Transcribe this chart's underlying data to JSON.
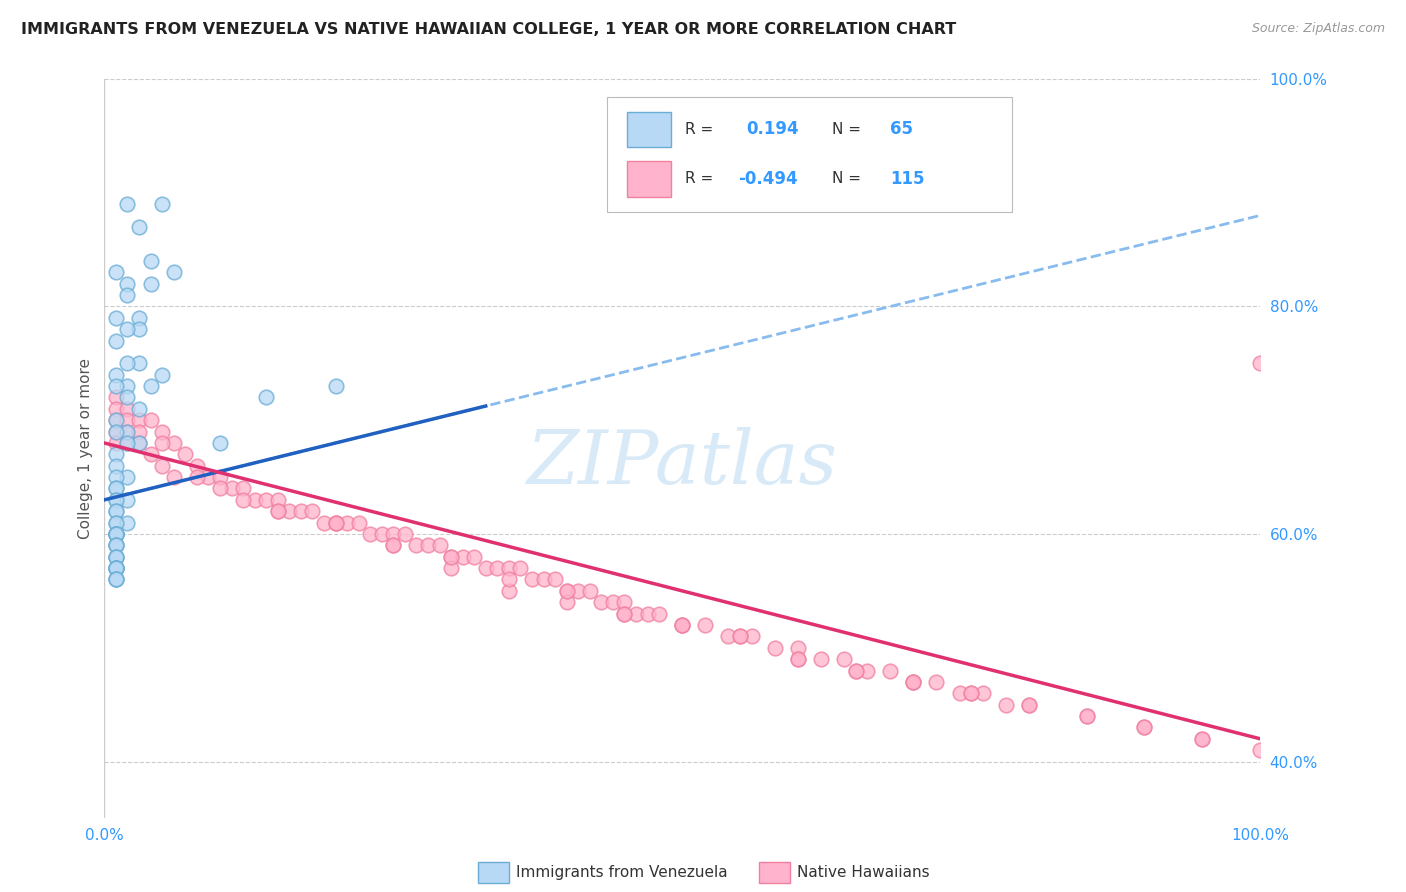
{
  "title": "IMMIGRANTS FROM VENEZUELA VS NATIVE HAWAIIAN COLLEGE, 1 YEAR OR MORE CORRELATION CHART",
  "source": "Source: ZipAtlas.com",
  "ylabel": "College, 1 year or more",
  "legend_label1": "Immigrants from Venezuela",
  "legend_label2": "Native Hawaiians",
  "r1": 0.194,
  "n1": 65,
  "r2": -0.494,
  "n2": 115,
  "blue_scatter_color_face": "#b8d9f5",
  "blue_scatter_color_edge": "#6aadd5",
  "pink_scatter_color_face": "#ffb3cc",
  "pink_scatter_color_edge": "#f080a0",
  "blue_line_color": "#2060c0",
  "blue_dash_color": "#88bbee",
  "pink_line_color": "#e03070",
  "watermark_color": "#d8eaf8",
  "right_tick_color": "#3399ff",
  "title_color": "#222222",
  "source_color": "#999999",
  "ylabel_color": "#555555",
  "grid_color": "#cccccc",
  "background_color": "#ffffff",
  "blue_x": [
    2,
    3,
    4,
    5,
    6,
    2,
    3,
    4,
    1,
    2,
    3,
    1,
    2,
    3,
    4,
    5,
    1,
    2,
    1,
    2,
    3,
    1,
    2,
    1,
    2,
    3,
    1,
    2,
    1,
    1,
    2,
    1,
    1,
    1,
    1,
    2,
    1,
    1,
    1,
    1,
    2,
    1,
    1,
    1,
    1,
    1,
    1,
    1,
    1,
    1,
    1,
    1,
    1,
    10,
    1,
    1,
    1,
    1,
    20,
    1,
    1,
    1,
    1,
    1,
    14
  ],
  "blue_y": [
    89,
    87,
    84,
    89,
    83,
    82,
    79,
    82,
    83,
    81,
    78,
    79,
    78,
    75,
    73,
    74,
    77,
    75,
    74,
    73,
    71,
    73,
    72,
    70,
    69,
    68,
    69,
    68,
    67,
    66,
    65,
    65,
    64,
    64,
    63,
    63,
    63,
    62,
    62,
    61,
    61,
    61,
    60,
    60,
    60,
    60,
    60,
    60,
    59,
    59,
    59,
    58,
    58,
    68,
    58,
    57,
    57,
    57,
    73,
    57,
    57,
    56,
    56,
    56,
    72
  ],
  "pink_x": [
    1,
    1,
    1,
    1,
    1,
    2,
    2,
    2,
    2,
    3,
    3,
    3,
    4,
    4,
    5,
    5,
    6,
    6,
    7,
    8,
    9,
    10,
    11,
    12,
    13,
    14,
    15,
    16,
    17,
    18,
    19,
    20,
    21,
    22,
    23,
    24,
    25,
    26,
    27,
    28,
    29,
    30,
    31,
    32,
    33,
    34,
    35,
    36,
    37,
    38,
    39,
    40,
    41,
    42,
    43,
    44,
    45,
    46,
    47,
    48,
    50,
    52,
    54,
    56,
    58,
    60,
    62,
    64,
    66,
    68,
    70,
    72,
    74,
    76,
    78,
    5,
    8,
    12,
    15,
    20,
    25,
    30,
    35,
    40,
    45,
    50,
    55,
    60,
    65,
    70,
    75,
    80,
    85,
    90,
    95,
    100,
    10,
    15,
    20,
    25,
    30,
    35,
    40,
    45,
    50,
    55,
    60,
    65,
    70,
    75,
    80,
    85,
    90,
    95,
    100
  ],
  "pink_y": [
    72,
    71,
    70,
    69,
    68,
    71,
    70,
    69,
    68,
    70,
    69,
    68,
    70,
    67,
    69,
    66,
    68,
    65,
    67,
    66,
    65,
    65,
    64,
    64,
    63,
    63,
    63,
    62,
    62,
    62,
    61,
    61,
    61,
    61,
    60,
    60,
    60,
    60,
    59,
    59,
    59,
    58,
    58,
    58,
    57,
    57,
    57,
    57,
    56,
    56,
    56,
    55,
    55,
    55,
    54,
    54,
    54,
    53,
    53,
    53,
    52,
    52,
    51,
    51,
    50,
    50,
    49,
    49,
    48,
    48,
    47,
    47,
    46,
    46,
    45,
    68,
    65,
    63,
    62,
    61,
    59,
    57,
    55,
    54,
    53,
    52,
    51,
    49,
    48,
    47,
    46,
    45,
    44,
    43,
    42,
    75,
    64,
    62,
    61,
    59,
    58,
    56,
    55,
    53,
    52,
    51,
    49,
    48,
    47,
    46,
    45,
    44,
    43,
    42,
    41
  ],
  "xlim": [
    0,
    100
  ],
  "ylim": [
    35,
    100
  ],
  "yticks": [
    40,
    60,
    80,
    100
  ],
  "ytick_labels": [
    "40.0%",
    "60.0%",
    "80.0%",
    "100.0%"
  ],
  "blue_line_x0": 0,
  "blue_line_y0": 63,
  "blue_line_x1": 100,
  "blue_line_y1": 88,
  "blue_solid_x1": 33,
  "pink_line_x0": 0,
  "pink_line_y0": 68,
  "pink_line_x1": 100,
  "pink_line_y1": 42
}
